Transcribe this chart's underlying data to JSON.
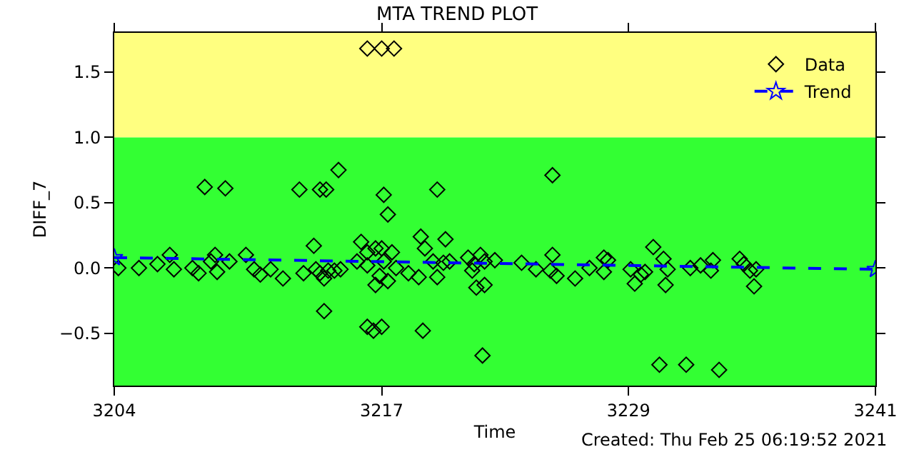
{
  "chart_data": {
    "type": "scatter",
    "title": "MTA TREND PLOT",
    "xlabel": "Time",
    "ylabel": "DIFF_7",
    "annotations": [
      "Created: Thu Feb 25 06:19:52 2021"
    ],
    "xlim": [
      3204,
      3241
    ],
    "xticks": [
      3204,
      3217,
      3229,
      3241
    ],
    "ylim": [
      -0.9,
      1.8
    ],
    "yticks": [
      {
        "value": -0.5,
        "label": "−0.5"
      },
      {
        "value": 0,
        "label": "0.0"
      },
      0.5,
      {
        "value": 1,
        "label": "1.0"
      },
      1.5
    ],
    "bands": [
      {
        "axis": "y",
        "from": 1.0,
        "to": 1.8,
        "color": "#ffff80"
      },
      {
        "axis": "y",
        "from": -0.9,
        "to": 1.0,
        "color": "#33ff33"
      }
    ],
    "grid": false,
    "legend": "top right",
    "series": [
      {
        "name": "Data",
        "marker": "diamond",
        "color": "#000000",
        "x": [
          3204.2,
          3205.2,
          3206.1,
          3206.7,
          3206.9,
          3207.8,
          3208.1,
          3208.4,
          3208.7,
          3208.9,
          3209.0,
          3209.4,
          3209.6,
          3210.4,
          3210.8,
          3211.1,
          3211.6,
          3212.2,
          3213.0,
          3213.2,
          3213.7,
          3213.8,
          3214.0,
          3214.0,
          3214.3,
          3214.2,
          3214.2,
          3214.9,
          3214.7,
          3215.0,
          3214.4,
          3215.8,
          3216.0,
          3216.3,
          3217.0,
          3217.6,
          3216.3,
          3216.6,
          3217.0,
          3217.1,
          3217.3,
          3216.3,
          3216.3,
          3216.7,
          3216.9,
          3217.0,
          3217.1,
          3217.5,
          3217.7,
          3217.3,
          3216.7,
          3218.3,
          3218.9,
          3219.0,
          3218.8,
          3219.1,
          3219.7,
          3219.5,
          3220.0,
          3220.3,
          3219.7,
          3220.1,
          3221.2,
          3221.5,
          3221.8,
          3222.0,
          3221.4,
          3221.6,
          3222.0,
          3221.9,
          3222.5,
          3223.8,
          3224.5,
          3225.3,
          3225.2,
          3225.5,
          3225.3,
          3226.4,
          3227.1,
          3227.8,
          3227.8,
          3228.0,
          3229.1,
          3229.3,
          3229.6,
          3229.8,
          3230.2,
          3230.7,
          3230.8,
          3230.9,
          3230.5,
          3231.8,
          3232.0,
          3232.5,
          3233.0,
          3233.1,
          3233.4,
          3234.4,
          3234.6,
          3234.9,
          3235.1,
          3235.2
        ],
        "values": [
          0.0,
          0.0,
          0.03,
          0.1,
          -0.01,
          0.0,
          -0.04,
          0.62,
          0.05,
          0.1,
          -0.03,
          0.61,
          0.05,
          0.1,
          -0.01,
          -0.05,
          -0.01,
          -0.08,
          0.6,
          -0.04,
          0.17,
          -0.01,
          -0.04,
          0.6,
          0.6,
          -0.33,
          -0.08,
          0.75,
          -0.02,
          -0.01,
          -0.02,
          0.05,
          0.2,
          1.68,
          1.68,
          1.68,
          -0.45,
          -0.48,
          -0.45,
          0.56,
          0.41,
          0.02,
          0.12,
          -0.13,
          -0.06,
          0.15,
          0.05,
          0.12,
          0.0,
          -0.1,
          0.15,
          -0.04,
          0.24,
          -0.48,
          -0.07,
          0.15,
          0.6,
          0.05,
          0.04,
          0.05,
          -0.07,
          0.22,
          0.08,
          0.03,
          0.1,
          0.05,
          -0.02,
          -0.15,
          -0.13,
          -0.67,
          0.06,
          0.04,
          -0.01,
          0.1,
          -0.02,
          -0.06,
          0.71,
          -0.08,
          0.0,
          0.08,
          -0.03,
          0.06,
          -0.01,
          -0.12,
          -0.05,
          -0.03,
          0.16,
          0.07,
          -0.13,
          -0.01,
          -0.74,
          -0.74,
          0.0,
          0.02,
          -0.02,
          0.06,
          -0.78,
          0.07,
          0.03,
          -0.02,
          -0.14,
          -0.01
        ]
      },
      {
        "name": "Trend",
        "type": "line",
        "marker": "star",
        "line_style": "dashed",
        "color": "#0000ff",
        "x": [
          3204,
          3241
        ],
        "values": [
          0.08,
          -0.01
        ]
      }
    ]
  }
}
